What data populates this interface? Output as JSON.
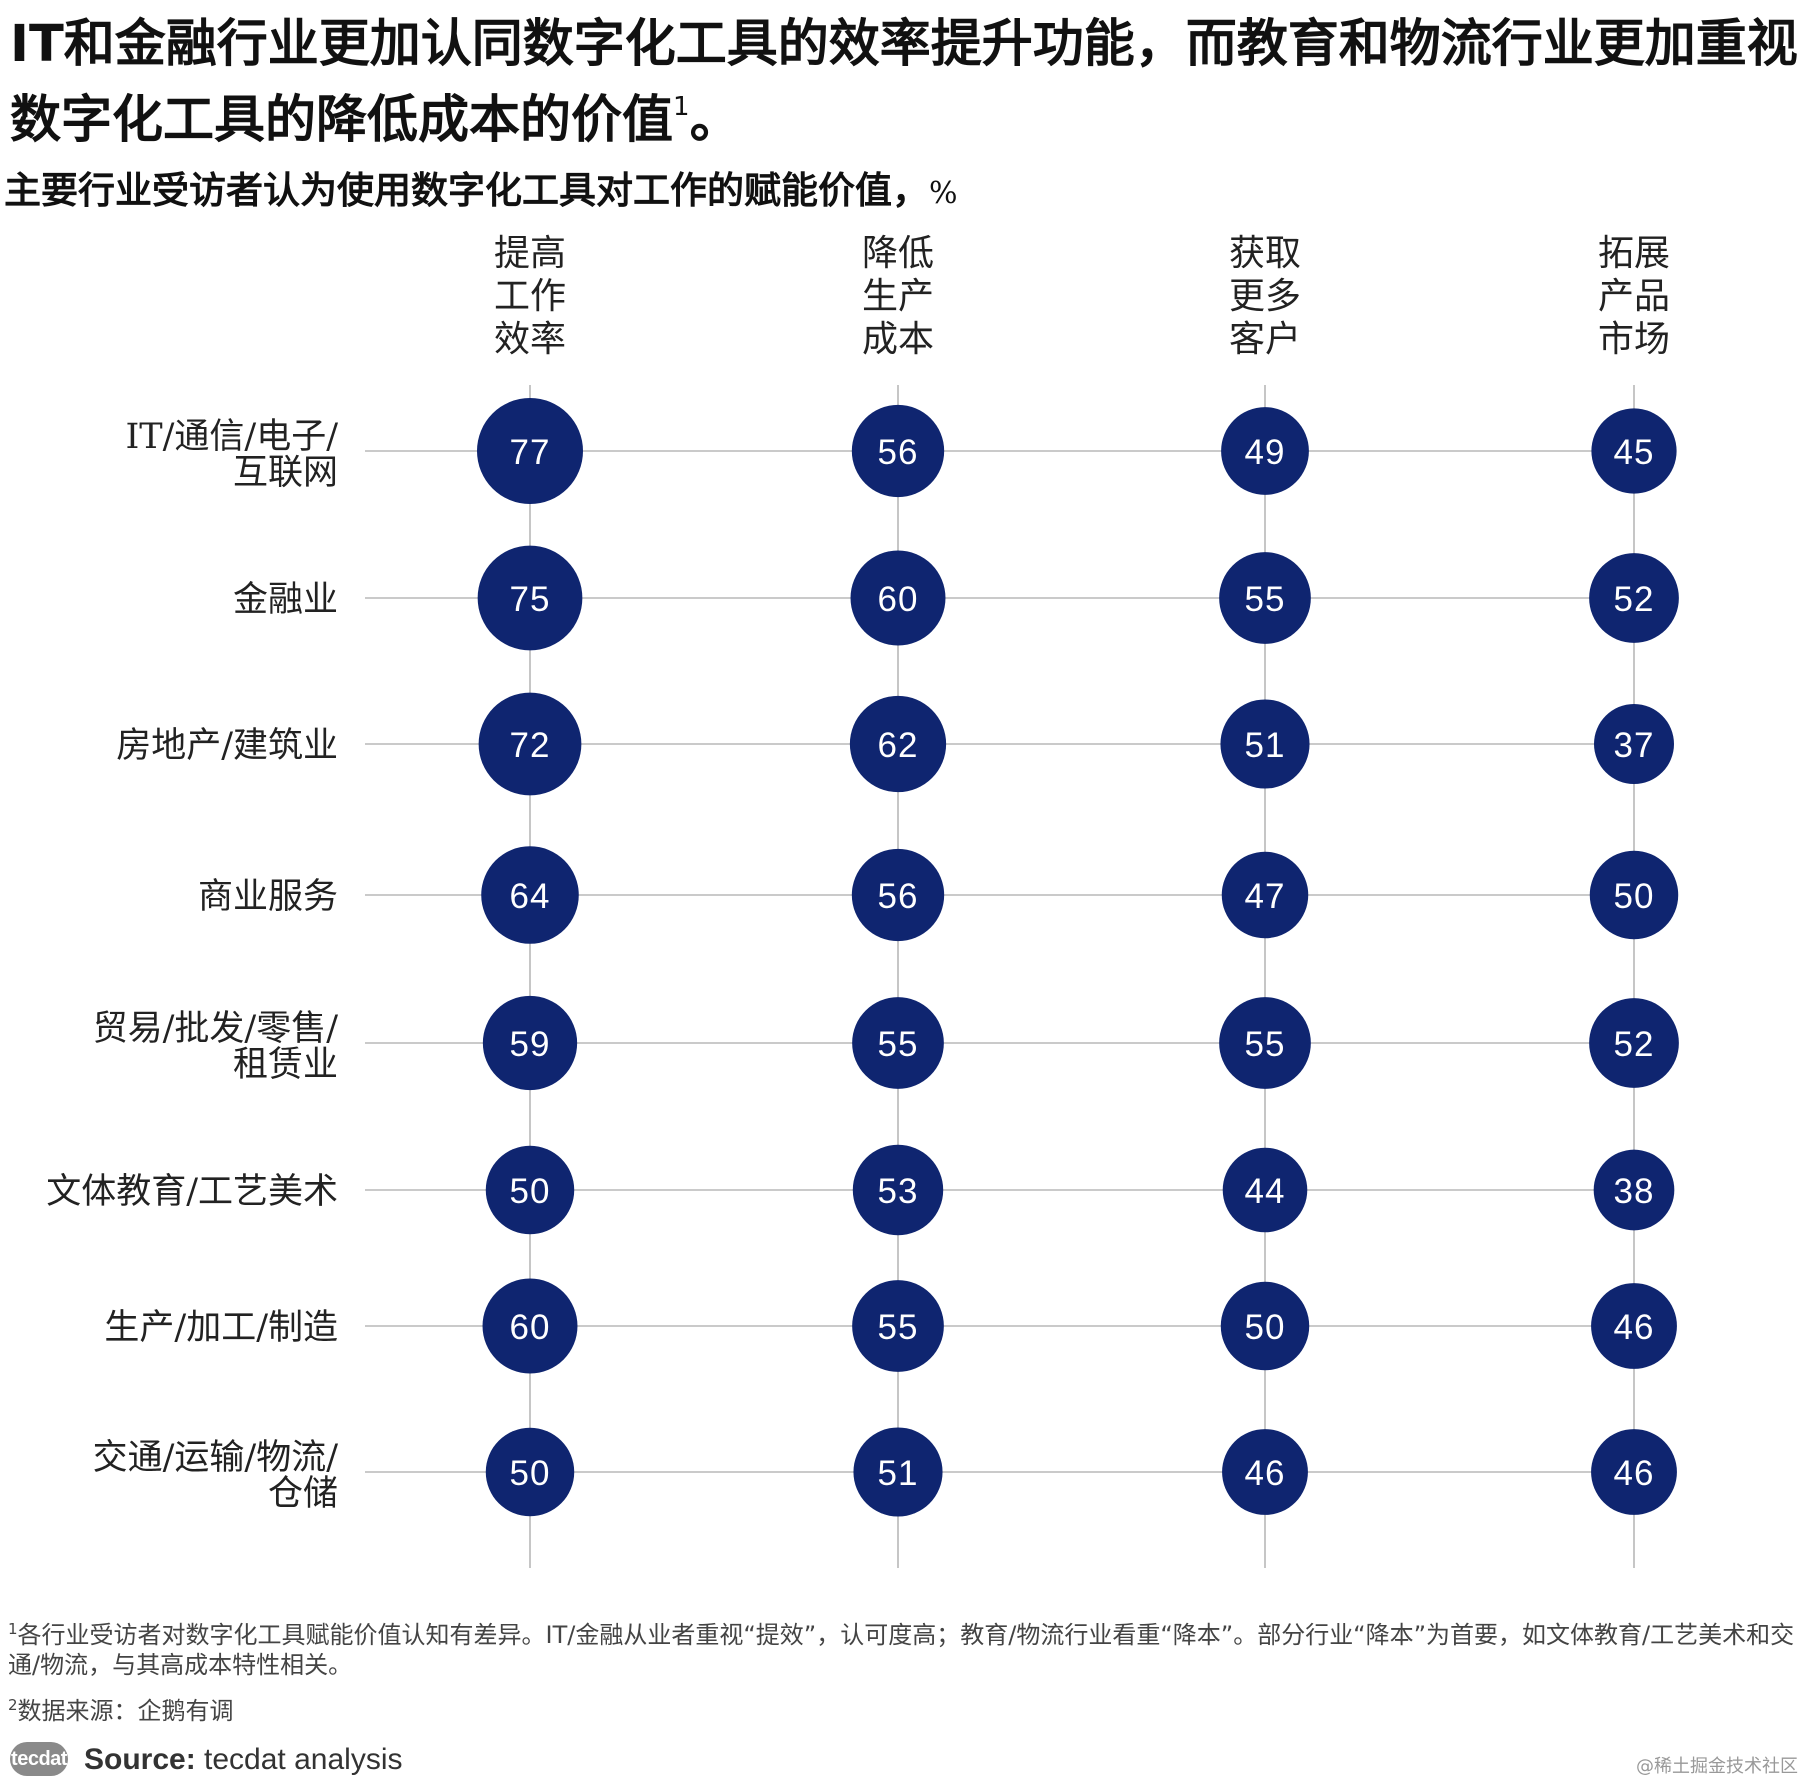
{
  "title_main": "IT和金融行业更加认同数字化工具的效率提升功能，而教育和物流行业更加重视数字化工具的降低成本的价值",
  "title_sup": "1",
  "title_end": "。",
  "subtitle_text": "主要行业受访者认为使用数字化工具对工作的赋能价值，",
  "subtitle_unit": "%",
  "colors": {
    "bubble": "#0f2570",
    "line": "#b8b8b8",
    "bubble_text": "#ffffff"
  },
  "chart_data": {
    "type": "bubble-grid",
    "columns": [
      {
        "lines": [
          "提高",
          "工作",
          "效率"
        ]
      },
      {
        "lines": [
          "降低",
          "生产",
          "成本"
        ]
      },
      {
        "lines": [
          "获取",
          "更多",
          "客户"
        ]
      },
      {
        "lines": [
          "拓展",
          "产品",
          "市场"
        ]
      }
    ],
    "rows": [
      {
        "lines": [
          "IT/通信/电子/",
          "互联网"
        ],
        "values": [
          77,
          56,
          49,
          45
        ]
      },
      {
        "lines": [
          "金融业"
        ],
        "values": [
          75,
          60,
          55,
          52
        ]
      },
      {
        "lines": [
          "房地产/建筑业"
        ],
        "values": [
          72,
          62,
          51,
          37
        ]
      },
      {
        "lines": [
          "商业服务"
        ],
        "values": [
          64,
          56,
          47,
          50
        ]
      },
      {
        "lines": [
          "贸易/批发/零售/",
          "租赁业"
        ],
        "values": [
          59,
          55,
          55,
          52
        ]
      },
      {
        "lines": [
          "文体教育/工艺美术"
        ],
        "values": [
          50,
          53,
          44,
          38
        ]
      },
      {
        "lines": [
          "生产/加工/制造"
        ],
        "values": [
          60,
          55,
          50,
          46
        ]
      },
      {
        "lines": [
          "交通/运输/物流/",
          "仓储"
        ],
        "values": [
          50,
          51,
          46,
          46
        ]
      }
    ]
  },
  "footnotes": {
    "fn1_sup": "1",
    "fn1_text": "各行业受访者对数字化工具赋能价值认知有差异。IT/金融从业者重视“提效”，认可度高；教育/物流行业看重“降本”。部分行业“降本”为首要，如文体教育/工艺美术和交通/物流，与其高成本特性相关。",
    "fn2_sup": "2",
    "fn2_text": "数据来源：企鹅有调"
  },
  "source": {
    "label": "Source:",
    "text": " tecdat analysis",
    "logo": "tecdat"
  },
  "watermark": "@稀土掘金技术社区"
}
